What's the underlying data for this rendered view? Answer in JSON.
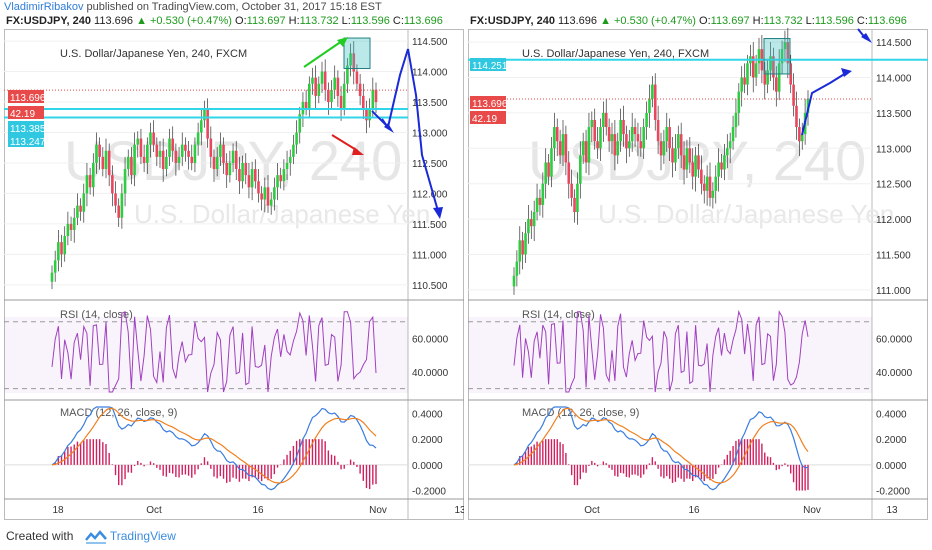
{
  "header": {
    "author": "VladimirRibakov",
    "published": "published on TradingView.com, October 31, 2017 15:18 EST"
  },
  "footer": {
    "created_with": "Created with",
    "brand": "TradingView"
  },
  "colors": {
    "up_candle": "#2ecc40",
    "down_candle": "#e8475e",
    "cyan_line": "#30d5e8",
    "rsi": "#a040c0",
    "macd": "#3a7de0",
    "signal": "#f08020",
    "hist": "#d02060"
  },
  "panels": [
    {
      "symbol": {
        "ticker": "FX:USDJPY, 240",
        "last": "113.696",
        "change": "▲ +0.530 (+0.47%)",
        "o_label": "O:",
        "o": "113.697",
        "h_label": "H:",
        "h": "113.732",
        "l_label": "L:",
        "l": "113.596",
        "c_label": "C:",
        "c": "113.696"
      },
      "chart_title": "U.S. Dollar/Japanese Yen, 240, FXCM",
      "watermark": "USDJPY, 240",
      "watermark_sub": "U.S. Dollar/Japanese Yen",
      "price_ticks": [
        "114.500",
        "114.000",
        "113.500",
        "113.000",
        "112.500",
        "112.000",
        "111.500",
        "111.000",
        "110.500"
      ],
      "price_tags": [
        {
          "text": "113.696",
          "bg": "#e84a4a"
        },
        {
          "text": "42.19",
          "bg": "#e84a4a"
        },
        {
          "text": "113.385",
          "bg": "#30c8e0"
        },
        {
          "text": "113.247",
          "bg": "#30c8e0"
        }
      ],
      "rsi_label": "RSI (14, close)",
      "rsi_ticks": [
        "60.0000",
        "40.0000"
      ],
      "macd_label": "MACD (12, 26, close, 9)",
      "macd_ticks": [
        "0.4000",
        "0.2000",
        "0.0000",
        "-0.2000"
      ],
      "time_ticks": [
        "18",
        "Oct",
        "16",
        "Nov",
        "13"
      ]
    },
    {
      "symbol": {
        "ticker": "FX:USDJPY, 240",
        "last": "113.696",
        "change": "▲ +0.530 (+0.47%)",
        "o_label": "O:",
        "o": "113.697",
        "h_label": "H:",
        "h": "113.732",
        "l_label": "L:",
        "l": "113.596",
        "c_label": "C:",
        "c": "113.696"
      },
      "chart_title": "U.S. Dollar/Japanese Yen, 240, FXCM",
      "watermark": "USDJPY, 240",
      "watermark_sub": "U.S. Dollar/Japanese Yen",
      "price_ticks": [
        "114.500",
        "114.000",
        "113.500",
        "113.000",
        "112.500",
        "112.000",
        "111.500",
        "111.000"
      ],
      "price_tags": [
        {
          "text": "114.251",
          "bg": "#30c8e0"
        },
        {
          "text": "113.696",
          "bg": "#e84a4a"
        },
        {
          "text": "42.19",
          "bg": "#e84a4a"
        }
      ],
      "rsi_label": "RSI (14, close)",
      "rsi_ticks": [
        "60.0000",
        "40.0000"
      ],
      "macd_label": "MACD (12, 26, close, 9)",
      "macd_ticks": [
        "0.4000",
        "0.2000",
        "0.0000",
        "-0.2000"
      ],
      "time_ticks": [
        "Oct",
        "16",
        "Nov",
        "13"
      ]
    }
  ],
  "chart_data": [
    {
      "type": "candlestick",
      "title": "U.S. Dollar/Japanese Yen, 240, FXCM",
      "symbol": "FX:USDJPY",
      "interval": "240",
      "ylim": [
        110.3,
        114.6
      ],
      "x_range": [
        "2017-09-18",
        "2017-11-13"
      ],
      "last_close": 113.696,
      "support_lines": [
        113.385,
        113.247
      ],
      "close_series": [
        110.7,
        110.9,
        111.2,
        111.0,
        111.3,
        111.5,
        111.4,
        111.6,
        111.8,
        111.7,
        112.0,
        112.3,
        112.1,
        112.5,
        112.8,
        112.6,
        112.4,
        112.7,
        112.3,
        112.0,
        111.8,
        111.6,
        112.0,
        112.4,
        112.6,
        112.3,
        112.8,
        112.9,
        112.6,
        112.5,
        112.8,
        113.0,
        112.8,
        112.6,
        112.7,
        112.4,
        112.6,
        112.9,
        112.7,
        112.5,
        112.6,
        112.8,
        112.7,
        112.6,
        112.5,
        112.8,
        113.0,
        113.2,
        113.4,
        112.9,
        112.6,
        112.4,
        112.6,
        112.8,
        112.5,
        112.3,
        112.5,
        112.7,
        112.4,
        112.2,
        112.5,
        112.3,
        112.1,
        112.4,
        112.2,
        112.0,
        111.9,
        112.1,
        111.8,
        111.9,
        112.1,
        112.3,
        112.2,
        112.4,
        112.5,
        112.6,
        112.8,
        113.0,
        113.3,
        113.5,
        113.4,
        113.8,
        113.9,
        113.6,
        113.8,
        114.0,
        113.7,
        113.5,
        113.7,
        113.9,
        113.6,
        113.4,
        113.8,
        114.1,
        114.3,
        114.0,
        113.8,
        113.6,
        113.4,
        113.2,
        113.4,
        113.7,
        113.5
      ],
      "rsi": {
        "name": "RSI (14, close)",
        "ylim": [
          25,
          80
        ],
        "levels": [
          70,
          30
        ]
      },
      "macd": {
        "name": "MACD (12, 26, close, 9)",
        "ylim": [
          -0.25,
          0.45
        ]
      }
    },
    {
      "type": "candlestick",
      "title": "U.S. Dollar/Japanese Yen, 240, FXCM",
      "symbol": "FX:USDJPY",
      "interval": "240",
      "ylim": [
        110.9,
        114.6
      ],
      "x_range": [
        "2017-09-18",
        "2017-11-13"
      ],
      "last_close": 113.696,
      "resistance_line": 114.251,
      "close_series": [
        111.2,
        111.4,
        111.7,
        111.5,
        111.8,
        112.0,
        111.9,
        112.1,
        112.3,
        112.2,
        112.5,
        112.8,
        112.6,
        113.0,
        113.3,
        113.1,
        112.9,
        113.2,
        112.8,
        112.5,
        112.3,
        112.1,
        112.5,
        112.9,
        113.1,
        112.8,
        113.3,
        113.4,
        113.1,
        113.0,
        113.3,
        113.5,
        113.3,
        113.1,
        113.2,
        112.9,
        113.1,
        113.4,
        113.2,
        113.0,
        113.1,
        113.3,
        113.2,
        113.1,
        113.0,
        113.3,
        113.5,
        113.7,
        113.9,
        113.4,
        113.1,
        112.9,
        113.1,
        113.3,
        113.0,
        112.8,
        113.0,
        113.2,
        112.9,
        112.7,
        113.0,
        112.8,
        112.6,
        112.9,
        112.7,
        112.5,
        112.4,
        112.6,
        112.3,
        112.4,
        112.6,
        112.8,
        112.7,
        112.9,
        113.0,
        113.1,
        113.3,
        113.5,
        113.8,
        114.0,
        113.9,
        114.2,
        114.3,
        114.0,
        114.2,
        114.4,
        114.1,
        113.9,
        114.1,
        114.3,
        114.0,
        113.8,
        114.2,
        114.4,
        114.5,
        114.2,
        113.9,
        113.6,
        113.3,
        113.1,
        113.2,
        113.5,
        113.7
      ],
      "rsi": {
        "name": "RSI (14, close)",
        "ylim": [
          25,
          80
        ],
        "levels": [
          70,
          30
        ]
      },
      "macd": {
        "name": "MACD (12, 26, close, 9)",
        "ylim": [
          -0.25,
          0.45
        ]
      }
    }
  ]
}
